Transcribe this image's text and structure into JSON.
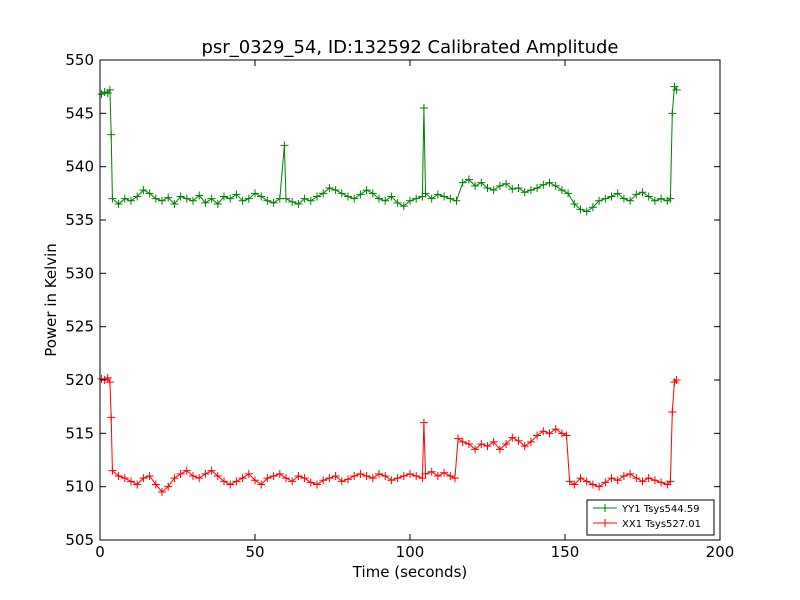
{
  "chart_data": {
    "type": "line",
    "title": "psr_0329_54, ID:132592 Calibrated Amplitude",
    "xlabel": "Time (seconds)",
    "ylabel": "Power in Kelvin",
    "xlim": [
      0,
      200
    ],
    "ylim": [
      505,
      550
    ],
    "xticks": [
      0,
      50,
      100,
      150,
      200
    ],
    "yticks": [
      505,
      510,
      515,
      520,
      525,
      530,
      535,
      540,
      545,
      550
    ],
    "grid": false,
    "legend_position": "lower-right",
    "marker": "+",
    "series": [
      {
        "name": "YY1 Tsys544.59",
        "color": "#008000",
        "x": [
          0.5,
          1.5,
          2.5,
          3.2,
          3.6,
          4,
          6,
          8,
          10,
          12,
          14,
          16,
          18,
          20,
          22,
          24,
          26,
          28,
          30,
          32,
          34,
          36,
          38,
          40,
          42,
          44,
          46,
          48,
          50,
          52,
          54,
          56,
          58,
          59.5,
          60,
          62,
          64,
          66,
          68,
          70,
          72,
          74,
          76,
          78,
          80,
          82,
          84,
          86,
          88,
          90,
          92,
          94,
          96,
          98,
          100,
          102,
          104,
          104.5,
          105,
          107,
          109,
          111,
          113,
          115,
          117,
          119,
          121,
          123,
          125,
          127,
          129,
          131,
          133,
          135,
          137,
          139,
          141,
          143,
          145,
          147,
          149,
          151,
          153,
          155,
          157,
          159,
          161,
          163,
          165,
          167,
          169,
          171,
          173,
          175,
          177,
          179,
          181,
          183,
          184,
          184.6,
          185.3,
          186
        ],
        "values": [
          546.8,
          547.0,
          546.9,
          547.2,
          543.0,
          537.0,
          536.5,
          537.0,
          536.8,
          537.2,
          537.8,
          537.5,
          537.0,
          536.8,
          537.1,
          536.5,
          537.2,
          537.0,
          536.8,
          537.3,
          536.6,
          537.0,
          536.5,
          537.2,
          537.0,
          537.4,
          536.8,
          537.0,
          537.5,
          537.2,
          536.8,
          536.6,
          537.0,
          542.0,
          537.0,
          536.7,
          536.5,
          537.0,
          536.8,
          537.2,
          537.5,
          538.0,
          537.8,
          537.5,
          537.2,
          537.0,
          537.4,
          537.8,
          537.5,
          537.0,
          536.8,
          537.2,
          536.6,
          536.3,
          536.8,
          537.0,
          537.2,
          545.5,
          537.5,
          537.0,
          537.4,
          537.2,
          537.0,
          536.8,
          538.5,
          538.8,
          538.2,
          538.5,
          538.0,
          537.8,
          538.2,
          538.4,
          537.9,
          538.0,
          537.6,
          537.8,
          538.0,
          538.3,
          538.5,
          538.2,
          537.8,
          537.5,
          536.5,
          536.0,
          535.8,
          536.2,
          536.8,
          537.0,
          537.2,
          537.5,
          537.0,
          536.8,
          537.4,
          537.6,
          537.2,
          536.8,
          537.0,
          536.8,
          537.0,
          545.0,
          547.5,
          547.2
        ]
      },
      {
        "name": "XX1 Tsys527.01",
        "color": "#ff0000",
        "x": [
          0.5,
          1.5,
          2.5,
          3.2,
          3.6,
          4,
          6,
          8,
          10,
          12,
          14,
          16,
          18,
          20,
          22,
          24,
          26,
          28,
          30,
          32,
          34,
          36,
          38,
          40,
          42,
          44,
          46,
          48,
          50,
          52,
          54,
          56,
          58,
          60,
          62,
          64,
          66,
          68,
          70,
          72,
          74,
          76,
          78,
          80,
          82,
          84,
          86,
          88,
          90,
          92,
          94,
          96,
          98,
          100,
          102,
          104,
          104.5,
          105,
          107,
          109,
          111,
          113,
          114.5,
          115.5,
          117,
          119,
          121,
          123,
          125,
          127,
          129,
          131,
          133,
          135,
          137,
          139,
          141,
          143,
          145,
          147,
          149,
          150.5,
          151.5,
          153,
          155,
          157,
          159,
          161,
          163,
          165,
          167,
          169,
          171,
          173,
          175,
          177,
          179,
          181,
          183,
          184,
          184.6,
          185.3,
          186
        ],
        "values": [
          520.1,
          520.0,
          520.2,
          519.8,
          516.5,
          511.5,
          511.0,
          510.8,
          510.5,
          510.2,
          510.8,
          511.0,
          510.2,
          509.5,
          510.0,
          510.8,
          511.2,
          511.5,
          511.0,
          510.8,
          511.2,
          511.5,
          511.0,
          510.5,
          510.2,
          510.5,
          510.8,
          511.2,
          510.6,
          510.2,
          510.8,
          511.0,
          511.2,
          510.8,
          510.5,
          511.0,
          510.8,
          510.4,
          510.2,
          510.6,
          510.8,
          511.0,
          510.5,
          510.7,
          511.0,
          511.2,
          511.0,
          510.8,
          511.2,
          511.0,
          510.6,
          510.8,
          511.0,
          511.2,
          511.0,
          510.8,
          516.0,
          511.2,
          511.4,
          511.0,
          511.3,
          511.0,
          510.8,
          514.5,
          514.2,
          514.0,
          513.5,
          514.0,
          513.8,
          514.2,
          513.5,
          514.0,
          514.6,
          514.3,
          513.8,
          514.2,
          514.8,
          515.2,
          515.0,
          515.4,
          515.0,
          514.8,
          510.5,
          510.2,
          510.8,
          510.5,
          510.2,
          510.0,
          510.4,
          510.8,
          510.6,
          511.0,
          511.2,
          510.8,
          510.5,
          510.8,
          510.6,
          510.4,
          510.2,
          510.5,
          517.0,
          519.8,
          520.0
        ]
      }
    ]
  }
}
